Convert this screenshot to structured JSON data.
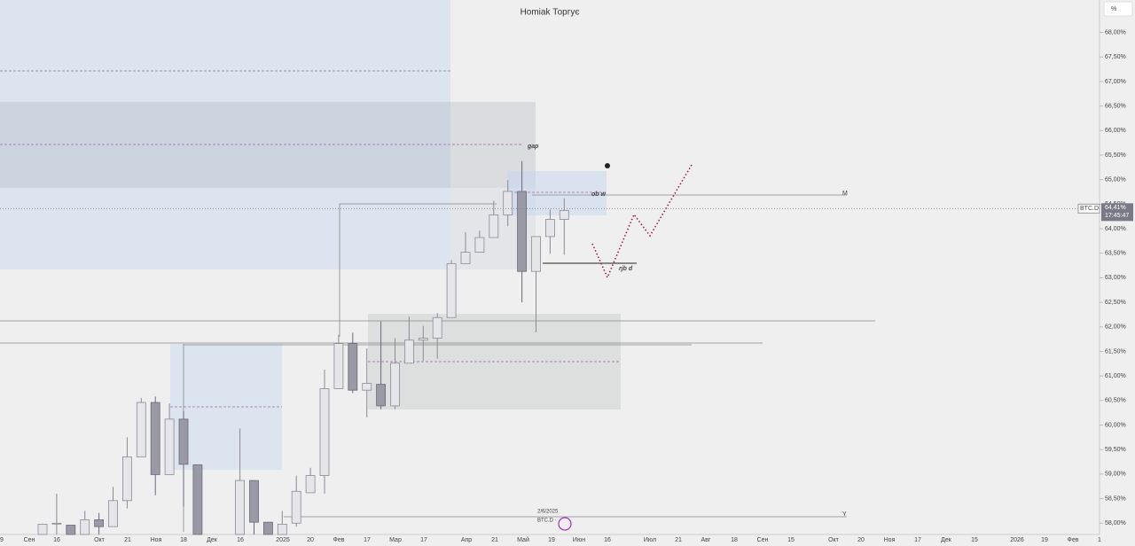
{
  "chart_data": {
    "type": "candlestick",
    "title": "Homiak Торгує",
    "up_color": "#e6e6ea",
    "down_color": "#9a9aa6",
    "categories": [
      null,
      null,
      null,
      null,
      null,
      null,
      null,
      null,
      null,
      null,
      null,
      null,
      null,
      null,
      null,
      null,
      null,
      null,
      null,
      null,
      null,
      null,
      null,
      null,
      null,
      null,
      null,
      null,
      null,
      null,
      null,
      null,
      null,
      null,
      null,
      null,
      null,
      null
    ],
    "candles": [
      {
        "open": 57.77,
        "high": 57.98,
        "low": 57.77,
        "close": 57.98
      },
      {
        "open": 57.99,
        "high": 58.6,
        "low": 57.77,
        "close": 58.0
      },
      {
        "open": 57.96,
        "high": 57.96,
        "low": 57.77,
        "close": 57.77
      },
      {
        "open": 57.77,
        "high": 58.25,
        "low": 57.77,
        "close": 58.07
      },
      {
        "open": 58.07,
        "high": 58.21,
        "low": 57.77,
        "close": 57.93
      },
      {
        "open": 57.93,
        "high": 58.74,
        "low": 57.93,
        "close": 58.46
      },
      {
        "open": 58.46,
        "high": 59.75,
        "low": 58.3,
        "close": 59.35
      },
      {
        "open": 59.35,
        "high": 60.55,
        "low": 59.35,
        "close": 60.46
      },
      {
        "open": 60.46,
        "high": 60.58,
        "low": 58.57,
        "close": 58.99
      },
      {
        "open": 58.99,
        "high": 60.44,
        "low": 58.99,
        "close": 60.12
      },
      {
        "open": 60.12,
        "high": 60.28,
        "low": 58.34,
        "close": 59.2
      },
      {
        "open": 59.19,
        "high": 59.19,
        "low": 57.77,
        "close": 57.77
      },
      null,
      null,
      {
        "open": 57.77,
        "high": 59.93,
        "low": 57.77,
        "close": 58.87
      },
      {
        "open": 58.87,
        "high": 58.87,
        "low": 57.77,
        "close": 58.02
      },
      {
        "open": 58.02,
        "high": 58.02,
        "low": 57.77,
        "close": 57.77
      },
      {
        "open": 57.77,
        "high": 58.25,
        "low": 57.77,
        "close": 57.98
      },
      {
        "open": 58.0,
        "high": 58.97,
        "low": 57.93,
        "close": 58.65
      },
      {
        "open": 58.62,
        "high": 59.13,
        "low": 58.62,
        "close": 58.97
      },
      {
        "open": 58.97,
        "high": 61.13,
        "low": 58.6,
        "close": 60.74
      },
      {
        "open": 60.74,
        "high": 61.84,
        "low": 60.74,
        "close": 61.66
      },
      {
        "open": 61.66,
        "high": 61.88,
        "low": 60.65,
        "close": 60.71
      },
      {
        "open": 60.71,
        "high": 61.56,
        "low": 60.16,
        "close": 60.85
      },
      {
        "open": 60.83,
        "high": 62.11,
        "low": 60.32,
        "close": 60.39
      },
      {
        "open": 60.39,
        "high": 61.77,
        "low": 60.32,
        "close": 61.26
      },
      {
        "open": 61.26,
        "high": 62.21,
        "low": 61.26,
        "close": 61.73
      },
      {
        "open": 61.73,
        "high": 62.02,
        "low": 61.31,
        "close": 61.77
      },
      {
        "open": 61.77,
        "high": 62.28,
        "low": 61.35,
        "close": 62.19
      },
      {
        "open": 62.19,
        "high": 63.36,
        "low": 62.19,
        "close": 63.29
      },
      {
        "open": 63.29,
        "high": 63.93,
        "low": 63.29,
        "close": 63.52
      },
      {
        "open": 63.52,
        "high": 63.96,
        "low": 63.52,
        "close": 63.82
      },
      {
        "open": 63.82,
        "high": 64.57,
        "low": 63.82,
        "close": 64.28
      },
      {
        "open": 64.28,
        "high": 64.99,
        "low": 64.05,
        "close": 64.76
      },
      {
        "open": 64.76,
        "high": 65.38,
        "low": 62.5,
        "close": 63.13
      },
      {
        "open": 63.13,
        "high": 63.84,
        "low": 61.89,
        "close": 63.84
      },
      {
        "open": 63.84,
        "high": 64.39,
        "low": 63.49,
        "close": 64.19
      },
      {
        "open": 64.19,
        "high": 64.62,
        "low": 63.47,
        "close": 64.37
      }
    ],
    "ylim": [
      57.77,
      68.66
    ],
    "yticks": [
      {
        "value": 58,
        "label": "58,00%"
      },
      {
        "value": 58.5,
        "label": "58,50%"
      },
      {
        "value": 59,
        "label": "59,00%"
      },
      {
        "value": 59.5,
        "label": "59,50%"
      },
      {
        "value": 60,
        "label": "60,00%"
      },
      {
        "value": 60.5,
        "label": "60,50%"
      },
      {
        "value": 61,
        "label": "61,00%"
      },
      {
        "value": 61.5,
        "label": "61,50%"
      },
      {
        "value": 62,
        "label": "62,00%"
      },
      {
        "value": 62.5,
        "label": "62,50%"
      },
      {
        "value": 63,
        "label": "63,00%"
      },
      {
        "value": 63.5,
        "label": "63,50%"
      },
      {
        "value": 64,
        "label": "64,00%"
      },
      {
        "value": 64.5,
        "label": "64,50%"
      },
      {
        "value": 65,
        "label": "65,00%"
      },
      {
        "value": 65.5,
        "label": "65,50%"
      },
      {
        "value": 66,
        "label": "66,00%"
      },
      {
        "value": 66.5,
        "label": "66,50%"
      },
      {
        "value": 67,
        "label": "67,00%"
      },
      {
        "value": 67.5,
        "label": "67,50%"
      },
      {
        "value": 68,
        "label": "68,00%"
      }
    ],
    "x_labels": [
      "9",
      "Сен",
      "16",
      "Окт",
      "21",
      "Ноя",
      "18",
      "Дек",
      "16",
      "2025",
      "20",
      "Фев",
      "17",
      "Мар",
      "17",
      "Апр",
      "21",
      "Май",
      "19",
      "Июн",
      "16",
      "Июл",
      "21",
      "Авг",
      "18",
      "Сен",
      "15",
      "Окт",
      "20",
      "Ноя",
      "17",
      "Дек",
      "15",
      "2026",
      "19",
      "Фев",
      "1"
    ],
    "annotations": [
      "gap",
      "ob w",
      "rjb d",
      "M",
      "Y",
      "2/6/2025",
      "BTC.D ·"
    ],
    "last_price": {
      "value": 64.41,
      "label": "64,41%"
    },
    "symbol": "BTC.D",
    "countdown": "17:45:47",
    "scale_button": "%"
  }
}
